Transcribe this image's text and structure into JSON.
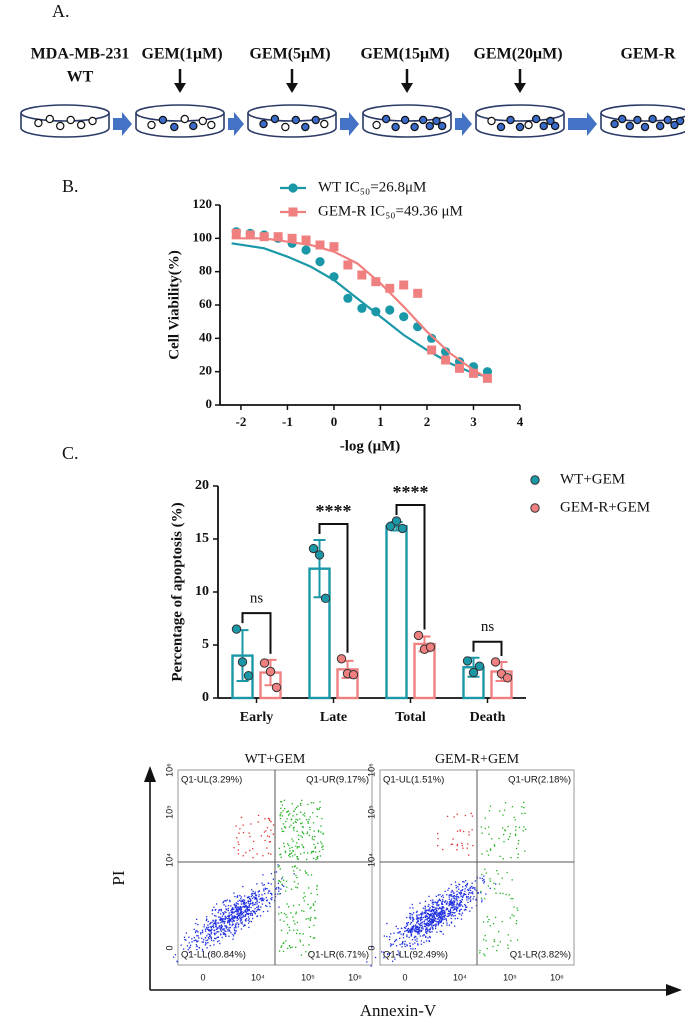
{
  "diagram": {
    "panel_label": "A.",
    "stages": [
      {
        "label": [
          "MDA-MB-231",
          "WT"
        ]
      },
      {
        "label": [
          "GEM(1μM)"
        ]
      },
      {
        "label": [
          "GEM(5μM)"
        ]
      },
      {
        "label": [
          "GEM(15μM)"
        ]
      },
      {
        "label": [
          "GEM(20μM)"
        ]
      },
      {
        "label": [
          "GEM-R"
        ]
      }
    ]
  },
  "chart_data": [
    {
      "panel_label": "B.",
      "type": "scatter",
      "xlabel": "-log (μM)",
      "ylabel": "Cell Viability(%)",
      "xlim": [
        -2.45,
        4
      ],
      "xticks": [
        -2,
        -1,
        0,
        1,
        2,
        3,
        4
      ],
      "ylim": [
        0,
        120
      ],
      "yticks": [
        0,
        20,
        40,
        60,
        80,
        100,
        120
      ],
      "x": [
        -2.1,
        -1.8,
        -1.5,
        -1.2,
        -0.9,
        -0.6,
        -0.3,
        0,
        0.3,
        0.6,
        0.9,
        1.2,
        1.5,
        1.8,
        2.1,
        2.4,
        2.7,
        3.0,
        3.3
      ],
      "fit_x": [
        -2.2,
        -1.5,
        -1,
        -0.5,
        0,
        0.5,
        1,
        1.5,
        2,
        2.5,
        3,
        3.3
      ],
      "series": [
        {
          "name": "WT IC₅₀=26.8μM",
          "color": "#1b98a8",
          "marker": "circle",
          "values": [
            104,
            103,
            102,
            100,
            97,
            93,
            86,
            77,
            64,
            58,
            56,
            57,
            53,
            47,
            40,
            32,
            26,
            23,
            20
          ],
          "fit": [
            97,
            94,
            89,
            83,
            75,
            64,
            53,
            42,
            33,
            25,
            19,
            17
          ]
        },
        {
          "name": "GEM-R IC₅₀=49.36 μM",
          "color": "#f08080",
          "marker": "square",
          "values": [
            103,
            102,
            101,
            101,
            100,
            99,
            96,
            95,
            84,
            78,
            74,
            70,
            72,
            67,
            33,
            27,
            22,
            19,
            16
          ],
          "fit": [
            100,
            100,
            98,
            96,
            92,
            85,
            73,
            59,
            44,
            31,
            21,
            16
          ]
        }
      ]
    },
    {
      "panel_label": "C.",
      "type": "bar",
      "ylabel": "Percentage of apoptosis (%)",
      "categories": [
        "Early",
        "Late",
        "Total",
        "Death"
      ],
      "ylim": [
        0,
        20
      ],
      "yticks": [
        0,
        5,
        10,
        15,
        20
      ],
      "legend": "upper right",
      "annotations": [
        "ns",
        "****",
        "****",
        "ns"
      ],
      "series": [
        {
          "name": "WT+GEM",
          "color": "#1b98a8",
          "values": [
            4,
            12.2,
            16.2,
            2.9
          ],
          "errors": [
            2.4,
            2.7,
            0.4,
            0.9
          ],
          "points": [
            [
              6.5,
              3.4,
              2.1
            ],
            [
              14.1,
              13.5,
              9.4
            ],
            [
              16.2,
              16.7,
              16.0
            ],
            [
              3.5,
              2.4,
              3.0
            ]
          ]
        },
        {
          "name": "GEM-R+GEM",
          "color": "#f08080",
          "values": [
            2.4,
            2.7,
            5.1,
            2.5
          ],
          "errors": [
            1.2,
            0.8,
            0.7,
            0.9
          ],
          "points": [
            [
              3.3,
              2.5,
              1.0
            ],
            [
              3.7,
              2.3,
              2.2
            ],
            [
              5.9,
              4.6,
              4.8
            ],
            [
              3.4,
              2.3,
              1.9
            ]
          ]
        }
      ]
    }
  ],
  "flow": {
    "x_axis_label": "Annexin-V",
    "y_axis_label": "PI",
    "xtick_labels": [
      "0",
      "10⁴",
      "10⁵",
      "10⁶"
    ],
    "ytick_labels": [
      "0",
      "10⁴",
      "10⁵",
      "10⁶"
    ],
    "plots": [
      {
        "title": "WT+GEM",
        "quadrants": [
          "Q1-UL(3.29%)",
          "Q1-UR(9.17%)",
          "Q1-LL(80.84%)",
          "Q1-LR(6.71%)"
        ]
      },
      {
        "title": "GEM-R+GEM",
        "quadrants": [
          "Q1-UL(1.51%)",
          "Q1-UR(2.18%)",
          "Q1-LL(92.49%)",
          "Q1-LR(3.82%)"
        ]
      }
    ]
  }
}
